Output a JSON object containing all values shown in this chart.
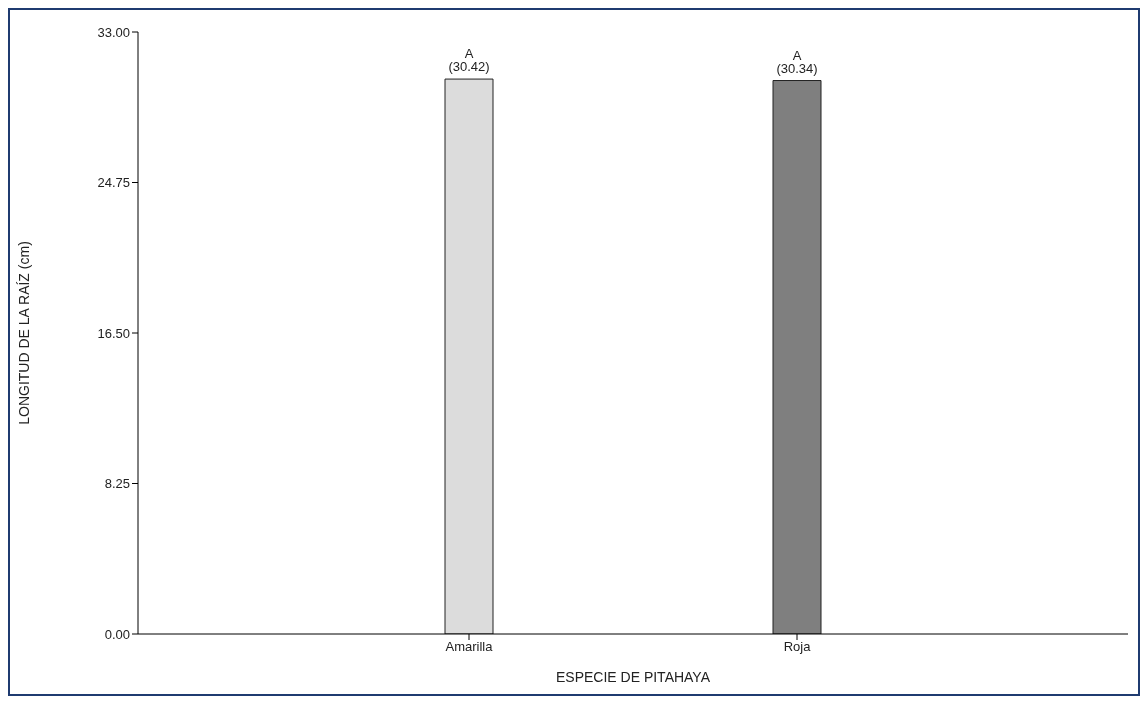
{
  "chart_data": {
    "type": "bar",
    "xlabel": "ESPECIE DE PITAHAYA",
    "ylabel": "LONGITUD DE LA RAÍZ (cm)",
    "categories": [
      "Amarilla",
      "Roja"
    ],
    "values": [
      30.42,
      30.34
    ],
    "colors": [
      "#dcdcdc",
      "#7f7f7f"
    ],
    "value_labels": [
      "A (30.42)",
      "A (30.34)"
    ],
    "ylim": [
      0,
      33
    ],
    "yticks": [
      {
        "value": 0,
        "label": "0.00"
      },
      {
        "value": 8.25,
        "label": "8.25"
      },
      {
        "value": 16.5,
        "label": "16.50"
      },
      {
        "value": 24.75,
        "label": "24.75"
      },
      {
        "value": 33,
        "label": "33.00"
      }
    ],
    "grid": false,
    "legend": false
  }
}
